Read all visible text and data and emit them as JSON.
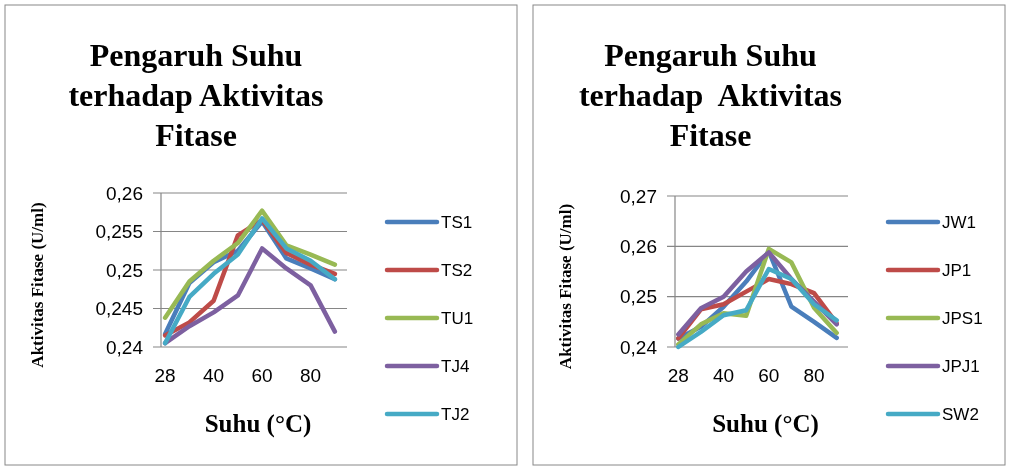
{
  "chart_data": [
    {
      "type": "line",
      "title": "Pengaruh Suhu terhadap Aktivitas Fitase",
      "xlabel": "Suhu (°C)",
      "ylabel": "Aktivitas Fitase (U/ml)",
      "categories": [
        "28",
        null,
        "40",
        null,
        "60",
        null,
        "80",
        null
      ],
      "ylim": [
        0.24,
        0.26
      ],
      "yticks": [
        {
          "value": 0.24,
          "label": "0,24"
        },
        {
          "value": 0.245,
          "label": "0,245"
        },
        {
          "value": 0.25,
          "label": "0,25"
        },
        {
          "value": 0.255,
          "label": "0,255"
        },
        {
          "value": 0.26,
          "label": "0,26"
        }
      ],
      "grid": "y",
      "legend": "right",
      "marker": "none",
      "series": [
        {
          "name": "TS1",
          "color": "#4a7ebb",
          "values": [
            0.2417,
            0.2483,
            0.251,
            0.2525,
            0.2563,
            0.2515,
            0.2502,
            0.2488
          ]
        },
        {
          "name": "TS2",
          "color": "#be4b48",
          "values": [
            0.2415,
            0.2432,
            0.246,
            0.2545,
            0.2565,
            0.2522,
            0.2507,
            0.2495
          ]
        },
        {
          "name": "TU1",
          "color": "#98b954",
          "values": [
            0.2438,
            0.2485,
            0.2512,
            0.2535,
            0.2577,
            0.2532,
            0.252,
            0.2507
          ]
        },
        {
          "name": "TJ4",
          "color": "#7d60a0",
          "values": [
            0.2405,
            0.2427,
            0.2445,
            0.2467,
            0.2528,
            0.2502,
            0.248,
            0.242
          ]
        },
        {
          "name": "TJ2",
          "color": "#46aac5",
          "values": [
            0.2405,
            0.2465,
            0.2495,
            0.252,
            0.2567,
            0.2528,
            0.2512,
            0.2488
          ]
        }
      ]
    },
    {
      "type": "line",
      "title": "Pengaruh Suhu terhadap  Aktivitas Fitase",
      "xlabel": "Suhu (°C)",
      "ylabel": "Aktivitas Fitase (U/ml)",
      "categories": [
        "28",
        null,
        "40",
        null,
        "60",
        null,
        "80",
        null
      ],
      "ylim": [
        0.24,
        0.27
      ],
      "yticks": [
        {
          "value": 0.24,
          "label": "0,24"
        },
        {
          "value": 0.25,
          "label": "0,25"
        },
        {
          "value": 0.26,
          "label": "0,26"
        },
        {
          "value": 0.27,
          "label": "0,27"
        }
      ],
      "grid": "y",
      "legend": "right",
      "marker": "none",
      "series": [
        {
          "name": "JW1",
          "color": "#4a7ebb",
          "values": [
            0.2417,
            0.244,
            0.248,
            0.253,
            0.259,
            0.248,
            0.245,
            0.2418
          ]
        },
        {
          "name": "JP1",
          "color": "#be4b48",
          "values": [
            0.2417,
            0.2475,
            0.2485,
            0.251,
            0.2535,
            0.2525,
            0.2507,
            0.2447
          ]
        },
        {
          "name": "JPS1",
          "color": "#98b954",
          "values": [
            0.2405,
            0.2445,
            0.2467,
            0.2462,
            0.2595,
            0.2568,
            0.2478,
            0.2428
          ]
        },
        {
          "name": "JPJ1",
          "color": "#7d60a0",
          "values": [
            0.2425,
            0.2477,
            0.25,
            0.255,
            0.2588,
            0.2535,
            0.249,
            0.2445
          ]
        },
        {
          "name": "SW2",
          "color": "#46aac5",
          "values": [
            0.24,
            0.243,
            0.2463,
            0.2473,
            0.2555,
            0.2535,
            0.2485,
            0.2453
          ]
        }
      ]
    }
  ]
}
